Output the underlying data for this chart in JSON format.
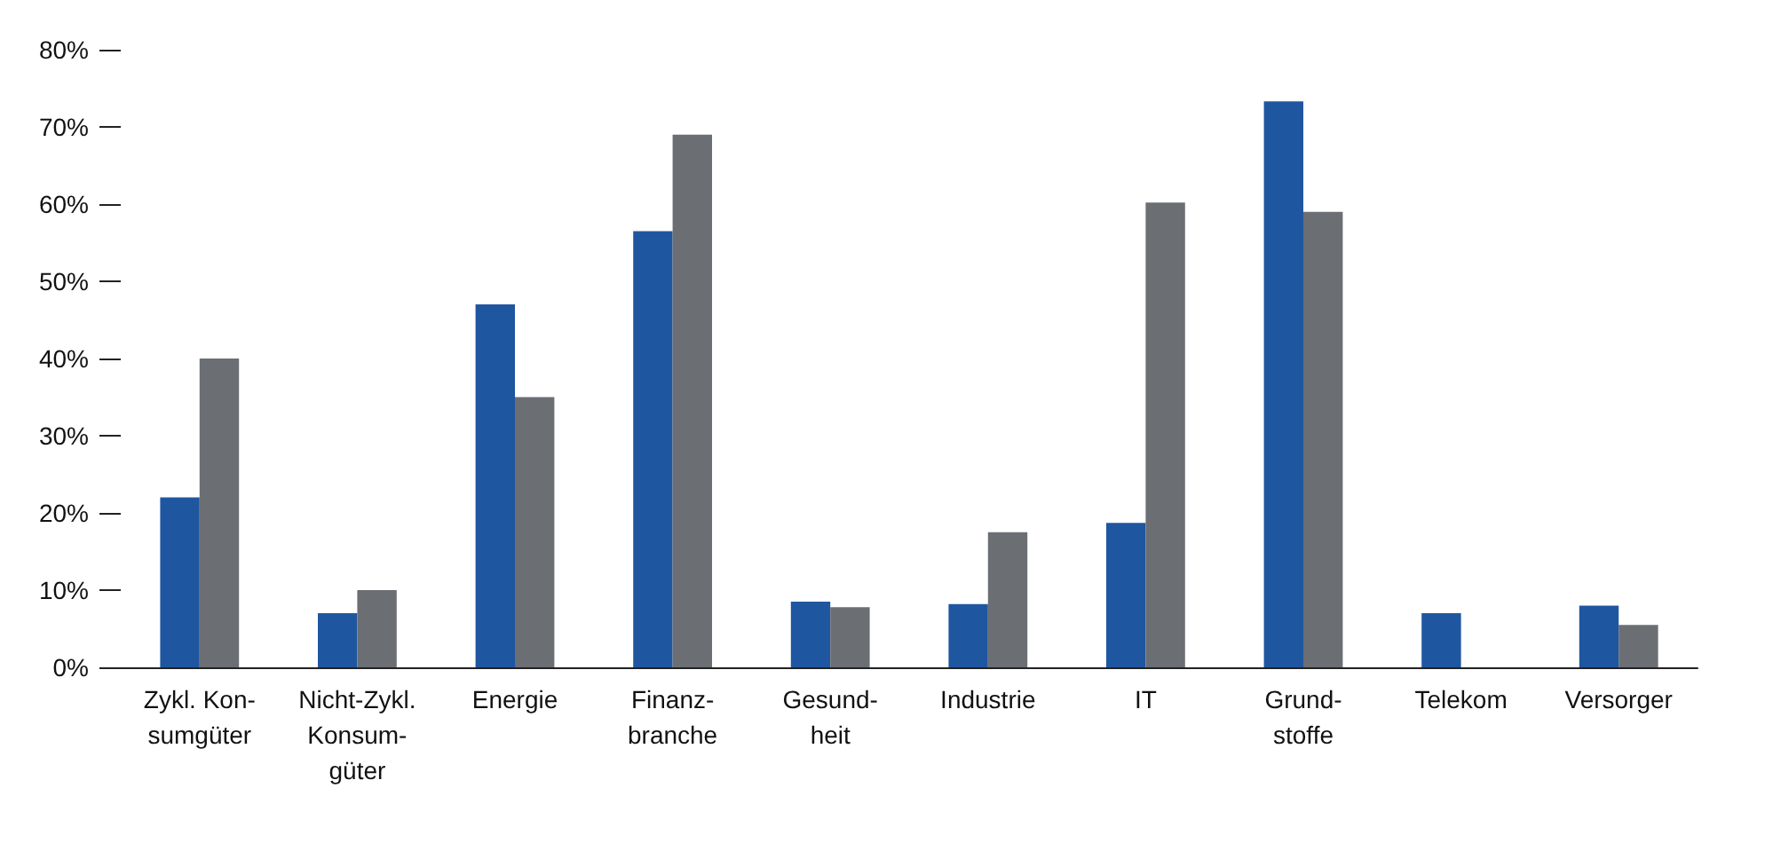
{
  "chart_data": {
    "type": "bar",
    "categories": [
      "Zykl. Kon-\nsumgüter",
      "Nicht-Zykl.\nKonsum-\ngüter",
      "Energie",
      "Finanz-\nbranche",
      "Gesund-\nheit",
      "Industrie",
      "IT",
      "Grund-\nstoffe",
      "Telekom",
      "Versorger"
    ],
    "series": [
      {
        "color": "#1f56a0",
        "values": [
          22,
          7,
          47,
          56.5,
          8.5,
          8.2,
          18.7,
          73.3,
          7,
          8
        ]
      },
      {
        "color": "#6b6e73",
        "values": [
          40,
          10,
          35,
          69,
          7.8,
          17.5,
          60.2,
          59,
          null,
          5.5
        ]
      }
    ],
    "ylim": [
      0,
      80
    ],
    "yticks": [
      {
        "value": 0,
        "label": "0%"
      },
      {
        "value": 10,
        "label": "10%"
      },
      {
        "value": 20,
        "label": "20%"
      },
      {
        "value": 30,
        "label": "30%"
      },
      {
        "value": 40,
        "label": "40%"
      },
      {
        "value": 50,
        "label": "50%"
      },
      {
        "value": 60,
        "label": "60%"
      },
      {
        "value": 70,
        "label": "70%"
      },
      {
        "value": 80,
        "label": "80%"
      }
    ],
    "grid": false
  }
}
